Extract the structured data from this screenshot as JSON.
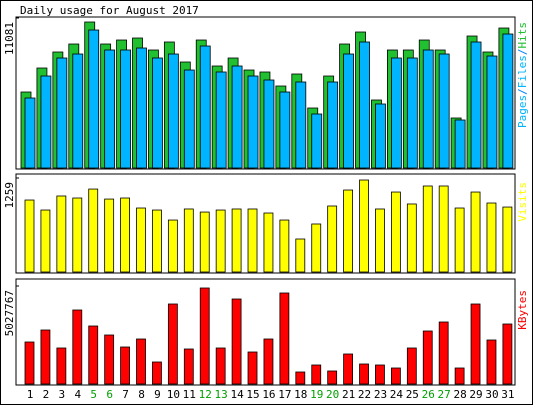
{
  "title": "Daily usage for August 2017",
  "categories": [
    "1",
    "2",
    "3",
    "4",
    "5",
    "6",
    "7",
    "8",
    "9",
    "10",
    "11",
    "12",
    "13",
    "14",
    "15",
    "16",
    "17",
    "18",
    "19",
    "20",
    "21",
    "22",
    "23",
    "24",
    "25",
    "26",
    "27",
    "28",
    "29",
    "30",
    "31"
  ],
  "category_colors": [
    "#000000",
    "#000000",
    "#000000",
    "#000000",
    "#00a000",
    "#00a000",
    "#000000",
    "#000000",
    "#000000",
    "#000000",
    "#000000",
    "#00a000",
    "#00a000",
    "#000000",
    "#000000",
    "#000000",
    "#000000",
    "#000000",
    "#00a000",
    "#00a000",
    "#000000",
    "#000000",
    "#000000",
    "#000000",
    "#000000",
    "#00a000",
    "#00a000",
    "#000000",
    "#000000",
    "#000000",
    "#000000"
  ],
  "chart_data": [
    {
      "type": "bar",
      "ylim": [
        0,
        11081
      ],
      "yticks": [
        11081
      ],
      "label_prefix": "Pages",
      "label_prefix_color": "#00b4ff",
      "separator": "/",
      "series": [
        {
          "name": "Hits",
          "color": "#20c030",
          "values": [
            5614,
            7387,
            8569,
            9160,
            10785,
            9160,
            9455,
            9603,
            8717,
            9308,
            7830,
            9455,
            7535,
            8126,
            7239,
            7092,
            6057,
            6944,
            4432,
            6796,
            9160,
            10046,
            5023,
            8717,
            8717,
            9455,
            8717,
            3694,
            9751,
            8569,
            10342
          ]
        },
        {
          "name": "Files",
          "color": "#00b4ff",
          "values": [
            5171,
            6796,
            8126,
            8421,
            10194,
            8717,
            8717,
            8864,
            8126,
            8421,
            7239,
            9012,
            7092,
            7535,
            6796,
            6501,
            5614,
            6353,
            3989,
            6353,
            8421,
            9308,
            4728,
            8126,
            8126,
            8717,
            8421,
            3546,
            9308,
            8273,
            9898
          ]
        }
      ]
    },
    {
      "type": "bar",
      "ylim": [
        0,
        1259
      ],
      "yticks": [
        1259
      ],
      "series": [
        {
          "name": "Visits",
          "color": "#ffff00",
          "values": [
            964,
            830,
            1018,
            991,
            1111,
            977,
            991,
            857,
            830,
            696,
            844,
            803,
            830,
            844,
            844,
            790,
            696,
            442,
            643,
            884,
            1098,
            1232,
            844,
            1071,
            911,
            1152,
            1152,
            857,
            1071,
            924,
            870
          ]
        }
      ]
    },
    {
      "type": "bar",
      "ylim": [
        0,
        5027767
      ],
      "yticks": [
        5027767
      ],
      "series": [
        {
          "name": "KBytes",
          "color": "#ff0000",
          "values": [
            2154768,
            2770416,
            1846944,
            3796496,
            2975632,
            2513896,
            1898248,
            2308680,
            1128688,
            4104320,
            1795640,
            4925184,
            1846944,
            4360840,
            1641728,
            2308680,
            4668664,
            615648,
            974776,
            666952,
            1539120,
            1026080,
            974776,
            820864,
            1846944,
            2719112,
            3180848,
            820864,
            4104320,
            2257376,
            3078240
          ]
        }
      ]
    }
  ]
}
